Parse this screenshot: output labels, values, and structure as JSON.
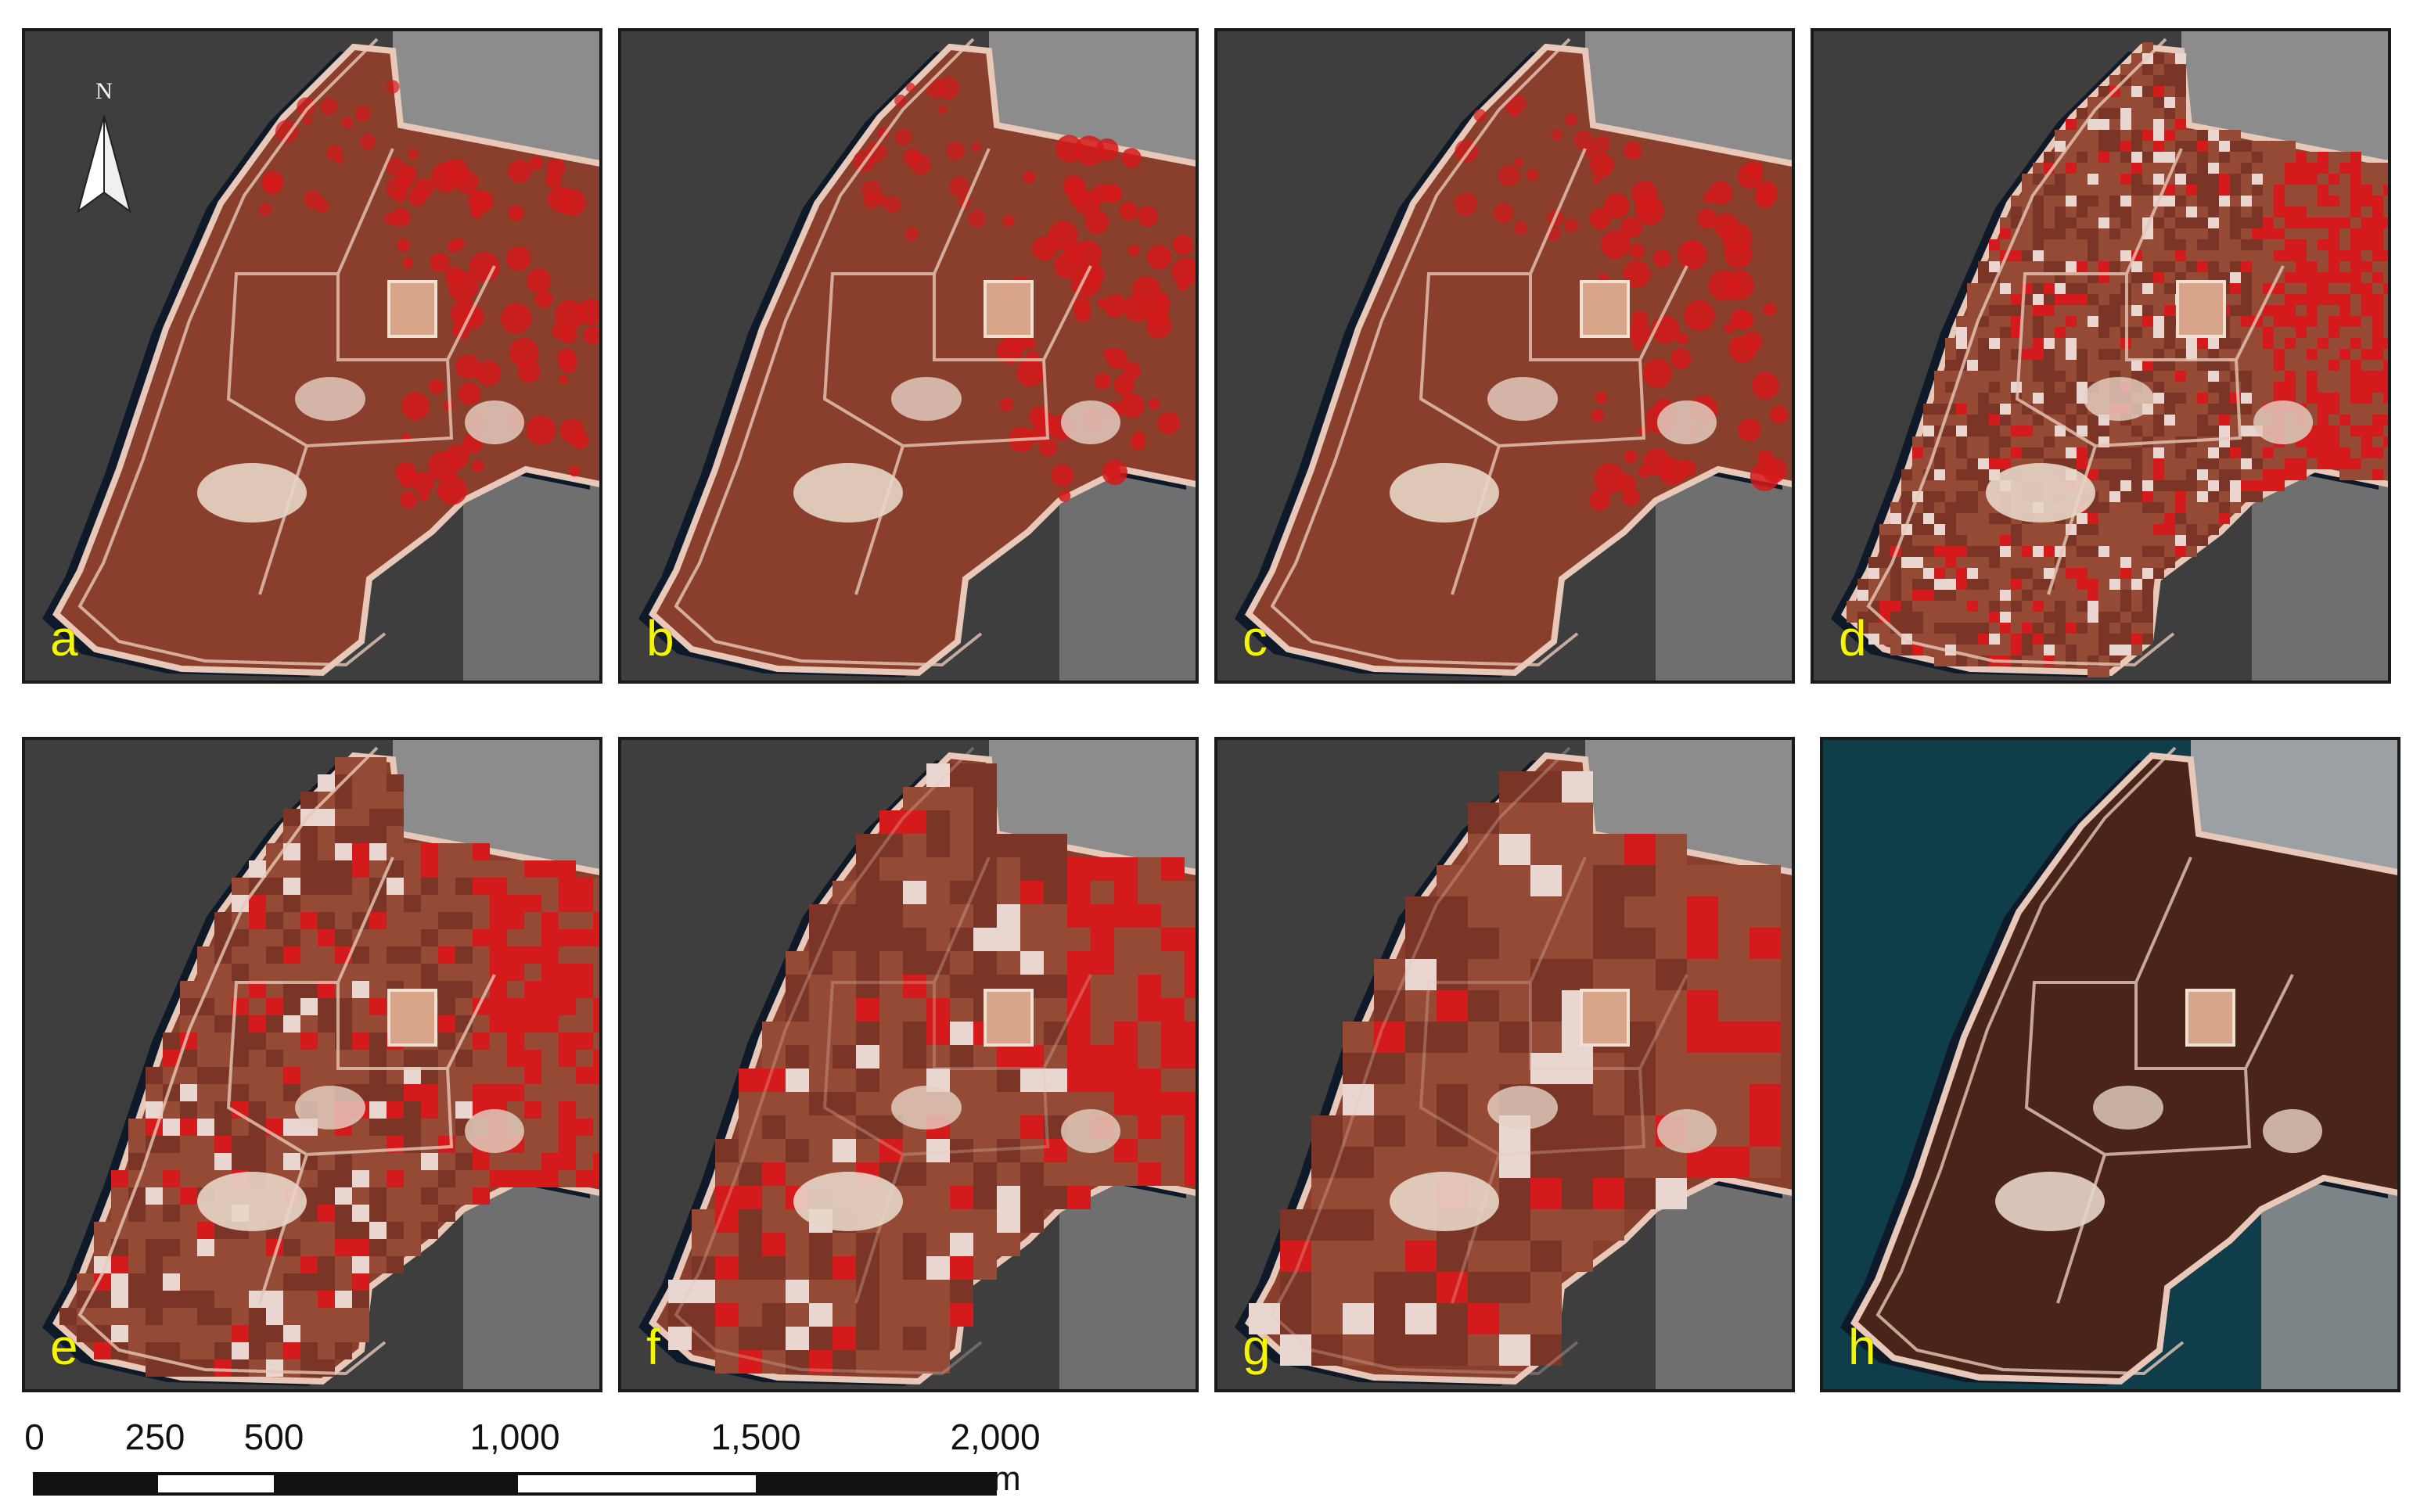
{
  "figure": {
    "panels": [
      {
        "id": "a",
        "label": "a",
        "rendering": "false-color",
        "pixelation": "none"
      },
      {
        "id": "b",
        "label": "b",
        "rendering": "false-color",
        "pixelation": "none"
      },
      {
        "id": "c",
        "label": "c",
        "rendering": "false-color",
        "pixelation": "none"
      },
      {
        "id": "d",
        "label": "d",
        "rendering": "false-color",
        "pixelation": "fine"
      },
      {
        "id": "e",
        "label": "e",
        "rendering": "false-color",
        "pixelation": "medium"
      },
      {
        "id": "f",
        "label": "f",
        "rendering": "false-color",
        "pixelation": "coarse"
      },
      {
        "id": "g",
        "label": "g",
        "rendering": "false-color",
        "pixelation": "very-coarse"
      },
      {
        "id": "h",
        "label": "h",
        "rendering": "true-color",
        "pixelation": "none"
      }
    ],
    "north_arrow": {
      "letter": "N"
    },
    "scale_bar": {
      "labels": [
        "0",
        "250",
        "500",
        "1,000",
        "1,500",
        "2,000"
      ],
      "unit": "m"
    },
    "colors": {
      "land_false_color": "#8a3f2c",
      "vegetation_red": "#d41a1a",
      "sea_gray": "#3e3e3e",
      "coast_dark": "#0e1a2a",
      "shore_light": "#e8c8b8",
      "sea_true_color": "#0f3d4a",
      "land_true_color": "#4a2418",
      "label_yellow": "#f5f500"
    }
  }
}
